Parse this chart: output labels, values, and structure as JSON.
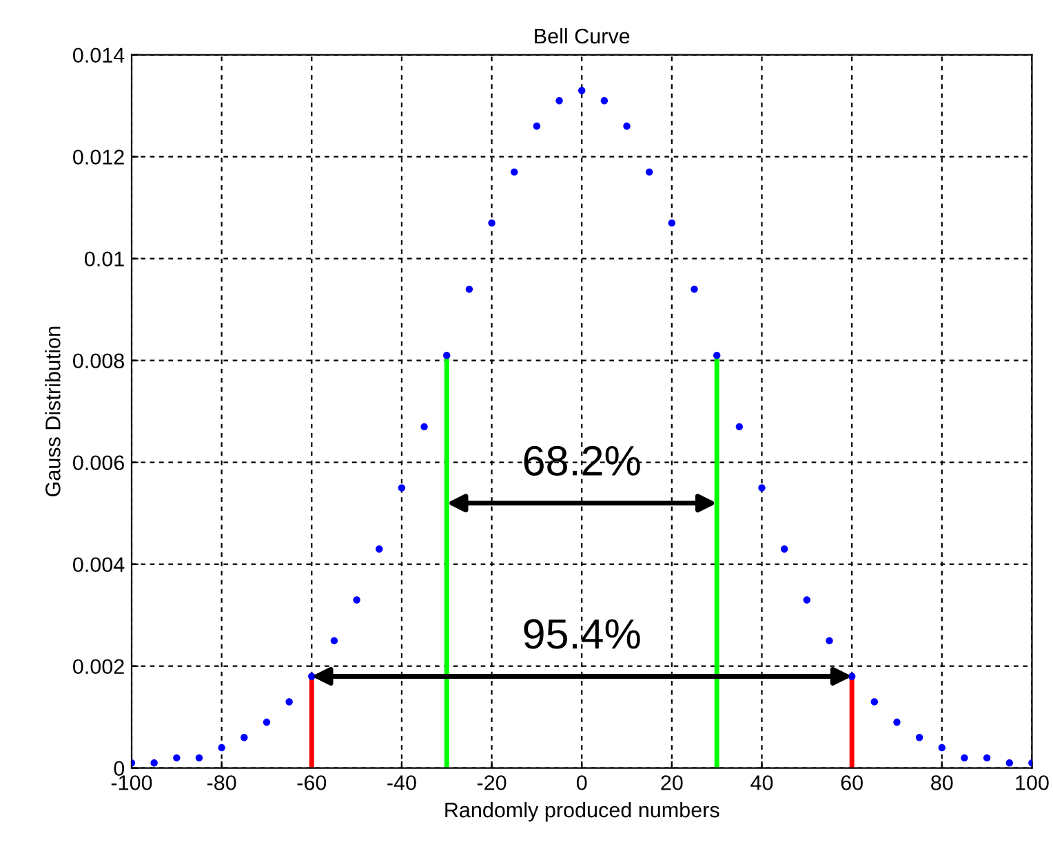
{
  "chart_data": {
    "type": "scatter",
    "title": "Bell Curve",
    "xlabel": "Randomly produced numbers",
    "ylabel": "Gauss Distribution",
    "xlim": [
      -100,
      100
    ],
    "xticks": [
      -100,
      -80,
      -60,
      -40,
      -20,
      0,
      20,
      40,
      60,
      80,
      100
    ],
    "ylim": [
      0,
      0.014
    ],
    "yticks": [
      0,
      0.002,
      0.004,
      0.006,
      0.008,
      {
        "value": 0.01,
        "label": "0.01"
      },
      0.012,
      0.014
    ],
    "grid": true,
    "marker": "circle",
    "series": [
      {
        "color": "#0000ff",
        "x": [
          -100,
          -95,
          -90,
          -85,
          -80,
          -75,
          -70,
          -65,
          -60,
          -55,
          -50,
          -45,
          -40,
          -35,
          -30,
          -25,
          -20,
          -15,
          -10,
          -5,
          0,
          5,
          10,
          15,
          20,
          25,
          30,
          35,
          40,
          45,
          50,
          55,
          60,
          65,
          70,
          75,
          80,
          85,
          90,
          95,
          100
        ],
        "values": [
          0.0001,
          0.0001,
          0.0002,
          0.0002,
          0.0004,
          0.0006,
          0.0009,
          0.0013,
          0.0018,
          0.0025,
          0.0033,
          0.0043,
          0.0055,
          0.0067,
          0.0081,
          0.0094,
          0.0107,
          0.0117,
          0.0126,
          0.0131,
          0.0133,
          0.0131,
          0.0126,
          0.0117,
          0.0107,
          0.0094,
          0.0081,
          0.0067,
          0.0055,
          0.0043,
          0.0033,
          0.0025,
          0.0018,
          0.0013,
          0.0009,
          0.0006,
          0.0004,
          0.0002,
          0.0002,
          0.0001,
          0.0001
        ]
      },
      {
        "type": "line",
        "marker": "none",
        "color": "#00ff00",
        "x": [
          -30,
          -30
        ],
        "values": [
          0,
          0.008
        ]
      },
      {
        "type": "line",
        "marker": "none",
        "color": "#00ff00",
        "x": [
          30,
          30
        ],
        "values": [
          0,
          0.008
        ]
      },
      {
        "type": "line",
        "marker": "none",
        "color": "#ff0000",
        "x": [
          -60,
          -60
        ],
        "values": [
          0,
          0.0018
        ]
      },
      {
        "type": "line",
        "marker": "none",
        "color": "#ff0000",
        "x": [
          60,
          60
        ],
        "values": [
          0,
          0.0018
        ]
      }
    ],
    "annotations": [
      "68.2%",
      "95.4%"
    ]
  }
}
